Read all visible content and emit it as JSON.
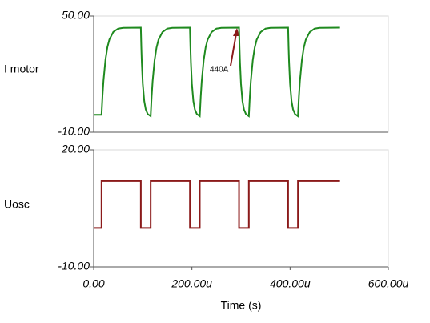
{
  "chart_data": [
    {
      "type": "line",
      "ylabel": "I motor",
      "xlim": [
        0,
        600
      ],
      "ylim": [
        -10,
        50
      ],
      "yticks": [
        {
          "value": -10,
          "label": "-10.00"
        },
        {
          "value": 50,
          "label": "50.00"
        }
      ],
      "annotation": "440A",
      "series": [
        {
          "name": "I motor",
          "color": "#1f8a1f",
          "x": [
            0,
            16,
            18,
            20,
            24,
            28,
            32,
            40,
            50,
            60,
            96,
            97,
            98,
            100,
            103,
            106,
            110,
            116,
            118,
            120,
            124,
            128,
            132,
            140,
            150,
            160,
            196,
            197,
            198,
            200,
            203,
            206,
            210,
            216,
            218,
            220,
            224,
            228,
            232,
            240,
            250,
            260,
            296,
            297,
            298,
            300,
            303,
            306,
            310,
            316,
            318,
            320,
            324,
            328,
            332,
            340,
            350,
            360,
            396,
            397,
            398,
            400,
            403,
            406,
            410,
            416,
            418,
            420,
            424,
            428,
            432,
            440,
            450,
            460,
            500
          ],
          "values": [
            -1,
            -1,
            9,
            16.7,
            27.4,
            34,
            37.9,
            41.8,
            43.5,
            43.9,
            44,
            33.8,
            25.9,
            14.9,
            6,
            1.8,
            -0.6,
            -1.7,
            8.4,
            16.3,
            27.2,
            33.8,
            37.8,
            41.7,
            43.5,
            43.9,
            44,
            33.8,
            25.9,
            14.9,
            6,
            1.8,
            -0.6,
            -1.7,
            8.4,
            16.3,
            27.2,
            33.8,
            37.8,
            41.7,
            43.5,
            43.9,
            44,
            33.8,
            25.9,
            14.9,
            6,
            1.8,
            -0.6,
            -1.7,
            8.4,
            16.3,
            27.2,
            33.8,
            37.8,
            41.7,
            43.5,
            43.9,
            44,
            33.8,
            25.9,
            14.9,
            6,
            1.8,
            -0.6,
            -1.7,
            8.4,
            16.3,
            27.2,
            33.8,
            37.8,
            41.7,
            43.5,
            43.9,
            44
          ]
        }
      ]
    },
    {
      "type": "line",
      "ylabel": "Uosc",
      "xlabel": "Time (s)",
      "xlim": [
        0,
        600
      ],
      "xticks": [
        {
          "value": 0,
          "label": "0.00"
        },
        {
          "value": 200,
          "label": "200.00u"
        },
        {
          "value": 400,
          "label": "400.00u"
        },
        {
          "value": 600,
          "label": "600.00u"
        }
      ],
      "ylim": [
        -10,
        20
      ],
      "yticks": [
        {
          "value": -10,
          "label": "-10.00"
        },
        {
          "value": 20,
          "label": "20.00"
        }
      ],
      "series": [
        {
          "name": "Uosc",
          "color": "#8b1a1a",
          "x": [
            0,
            16,
            16,
            96,
            96,
            116,
            116,
            196,
            196,
            216,
            216,
            296,
            296,
            316,
            316,
            396,
            396,
            416,
            416,
            500
          ],
          "values": [
            0,
            0,
            12,
            12,
            0,
            0,
            12,
            12,
            0,
            0,
            12,
            12,
            0,
            0,
            12,
            12,
            0,
            0,
            12,
            12
          ]
        }
      ]
    }
  ]
}
